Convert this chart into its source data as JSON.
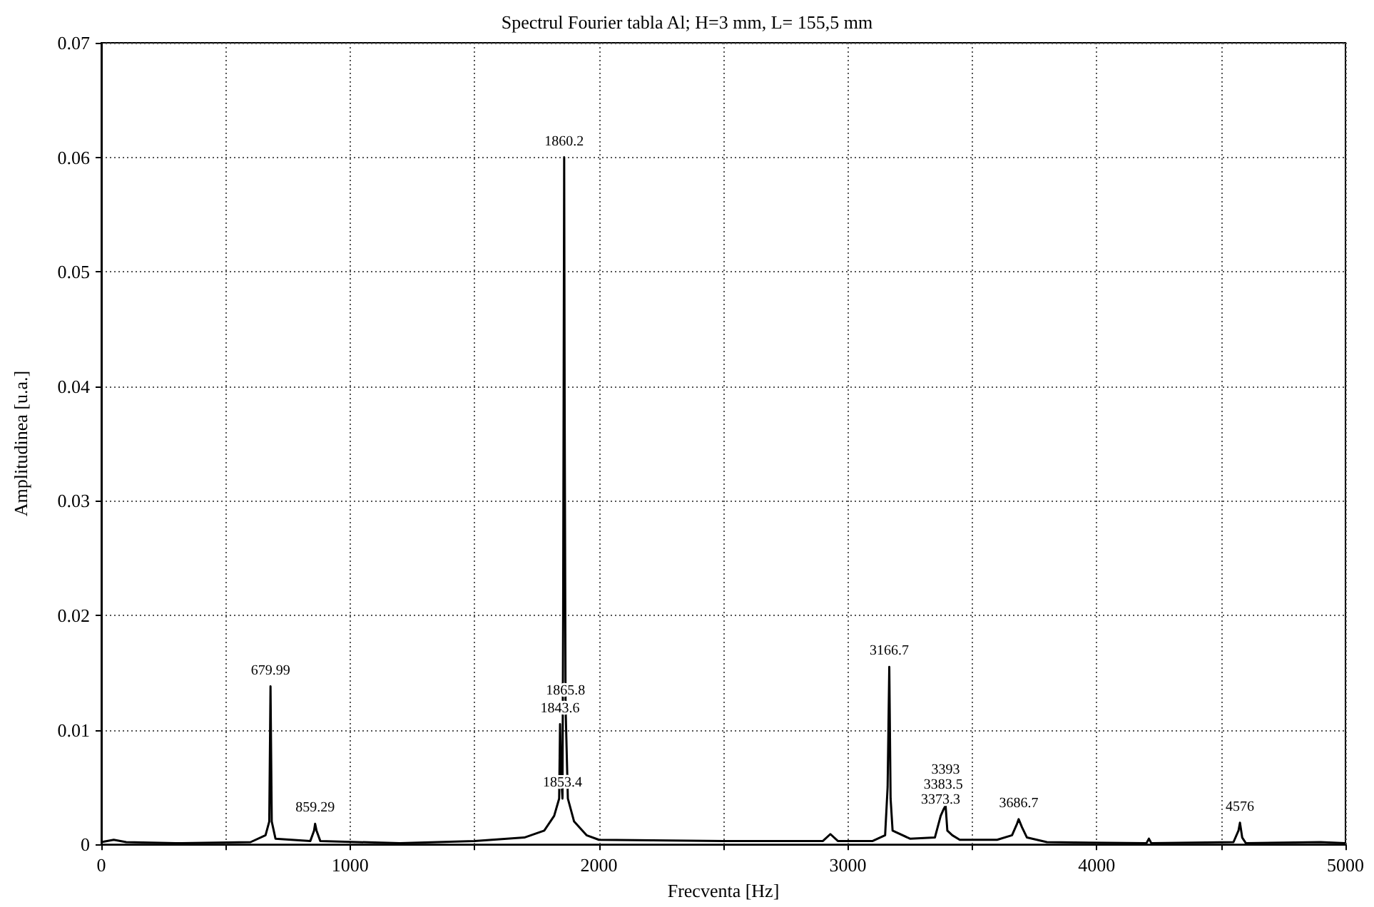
{
  "chart_data": {
    "type": "line",
    "title": "Spectrul Fourier tabla Al; H=3 mm, L= 155,5 mm",
    "xlabel": "Frecventa [Hz]",
    "ylabel": "Amplitudinea [u.a.]",
    "series": [
      {
        "color": "#000000",
        "x": [
          0,
          50,
          100,
          300,
          600,
          660,
          675,
          680,
          685,
          700,
          840,
          855,
          859.29,
          865,
          880,
          1200,
          1500,
          1700,
          1780,
          1820,
          1840,
          1843.6,
          1848,
          1853.4,
          1856,
          1858,
          1860.2,
          1862,
          1865.8,
          1875,
          1900,
          1950,
          2000,
          2500,
          2900,
          2930,
          2960,
          3100,
          3150,
          3160,
          3166.7,
          3172,
          3180,
          3250,
          3350,
          3373.3,
          3383.5,
          3393,
          3400,
          3420,
          3450,
          3600,
          3660,
          3680,
          3686.7,
          3700,
          3720,
          3800,
          4200,
          4210,
          4220,
          4550,
          4570,
          4576,
          4585,
          4600,
          4900,
          5000
        ],
        "values": [
          0.0002,
          0.0004,
          0.0002,
          0.0001,
          0.0002,
          0.0008,
          0.002,
          0.0138,
          0.002,
          0.0005,
          0.0003,
          0.0012,
          0.0018,
          0.0012,
          0.0003,
          0.0001,
          0.0003,
          0.0006,
          0.0012,
          0.0025,
          0.004,
          0.0105,
          0.006,
          0.004,
          0.02,
          0.039,
          0.06,
          0.039,
          0.012,
          0.004,
          0.002,
          0.0008,
          0.0004,
          0.0003,
          0.0003,
          0.0009,
          0.0003,
          0.0003,
          0.0008,
          0.005,
          0.0155,
          0.004,
          0.0012,
          0.0005,
          0.0006,
          0.0025,
          0.003,
          0.0034,
          0.0012,
          0.0008,
          0.0004,
          0.0004,
          0.0008,
          0.0018,
          0.0022,
          0.0015,
          0.0006,
          0.0002,
          0.0001,
          0.0005,
          0.0001,
          0.0002,
          0.0012,
          0.0019,
          0.0006,
          0.0001,
          0.0002,
          0.0001
        ]
      }
    ],
    "annotations": [
      {
        "text": "679.99",
        "x": 680,
        "y": 0.0138
      },
      {
        "text": "859.29",
        "x": 859.29,
        "y": 0.0018
      },
      {
        "text": "1860.2",
        "x": 1860.2,
        "y": 0.06
      },
      {
        "text": "1865.8",
        "x": 1865.8,
        "y": 0.012
      },
      {
        "text": "1843.6",
        "x": 1843.6,
        "y": 0.0105
      },
      {
        "text": "1853.4",
        "x": 1853.4,
        "y": 0.004
      },
      {
        "text": "3166.7",
        "x": 3166.7,
        "y": 0.0155
      },
      {
        "text": "3393",
        "x": 3393,
        "y": 0.0034
      },
      {
        "text": "3383.5",
        "x": 3383.5,
        "y": 0.003
      },
      {
        "text": "3373.3",
        "x": 3373.3,
        "y": 0.0025
      },
      {
        "text": "3686.7",
        "x": 3686.7,
        "y": 0.0022
      },
      {
        "text": "4576",
        "x": 4576,
        "y": 0.0019
      }
    ],
    "xlim": [
      0,
      5000
    ],
    "xticks": [
      0,
      {
        "value": 500,
        "label": null
      },
      1000,
      {
        "value": 1500,
        "label": null
      },
      2000,
      {
        "value": 2500,
        "label": null
      },
      3000,
      {
        "value": 3500,
        "label": null
      },
      4000,
      {
        "value": 4500,
        "label": null
      },
      5000
    ],
    "ylim": [
      0,
      0.07
    ],
    "yticks": [
      0,
      0.01,
      0.02,
      0.03,
      0.04,
      0.05,
      0.06,
      0.07
    ],
    "grid": true,
    "line_style": "solid",
    "marker": "none"
  }
}
